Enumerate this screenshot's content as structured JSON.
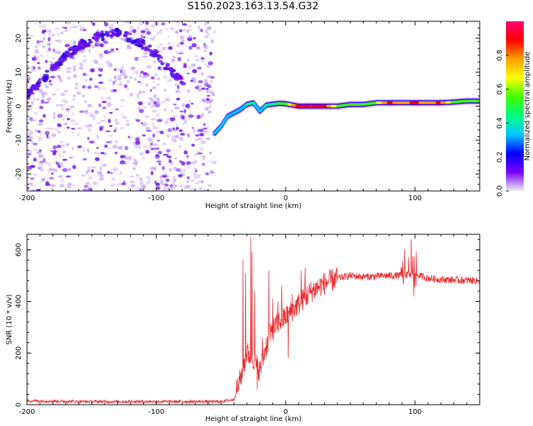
{
  "page_title": "S150.2023.163.13.54.G32",
  "chart_data": [
    {
      "type": "heatmap",
      "xlabel": "Height of straight line (km)",
      "ylabel": "Frequency (Hz)",
      "xlim": [
        -200,
        150
      ],
      "ylim": [
        -25,
        25
      ],
      "x_ticks": [
        "-200",
        "-100",
        "0",
        "100"
      ],
      "y_ticks": [
        "20",
        "10",
        "0",
        "-10",
        "-20"
      ],
      "colorbar": {
        "label": "Normalized spectral amplitude",
        "range": [
          0,
          1
        ],
        "ticks": [
          "0.0",
          "0.2",
          "0.4",
          "0.6",
          "0.8"
        ],
        "colors": [
          "#f0f0f0",
          "#7a00ff",
          "#0000ff",
          "#00c8ff",
          "#00ff80",
          "#40ff00",
          "#ffff00",
          "#ffa000",
          "#ff0000",
          "#ff0070"
        ]
      },
      "noise_region_x": [
        -200,
        -55
      ],
      "diffuse_speckle_color": "#b48cf0",
      "strong_speckle_color": "#7a20f0",
      "ridge_track": {
        "x": [
          -200,
          -195,
          -190,
          -185,
          -180,
          -175,
          -170,
          -165,
          -160,
          -155,
          -150,
          -145,
          -140,
          -135,
          -130,
          -125,
          -120,
          -115,
          -110,
          -105,
          -100,
          -95,
          -90,
          -85,
          -80
        ],
        "y": [
          3,
          5,
          7,
          9,
          11,
          13,
          15,
          16,
          17.5,
          18.5,
          19.5,
          20.5,
          21,
          21.5,
          21.5,
          21,
          20,
          19,
          18,
          16.5,
          15,
          13,
          11,
          9,
          7
        ]
      },
      "dominant_line": {
        "x": [
          -55,
          -50,
          -45,
          -40,
          -35,
          -30,
          -25,
          -20,
          -15,
          -10,
          -5,
          0,
          10,
          20,
          30,
          40,
          50,
          60,
          70,
          80,
          90,
          100,
          110,
          120,
          130,
          140,
          150
        ],
        "y": [
          -8,
          -6,
          -3,
          -2,
          -1,
          0.5,
          1,
          -1.5,
          0.3,
          0.6,
          0.8,
          0.7,
          0,
          0,
          0,
          0,
          0.5,
          0.5,
          1,
          1,
          1,
          1,
          1,
          1,
          1.2,
          1.5,
          1.5
        ],
        "amplitude": [
          0.3,
          0.35,
          0.35,
          0.3,
          0.35,
          0.4,
          0.4,
          0.35,
          0.4,
          0.45,
          0.5,
          0.55,
          0.9,
          0.95,
          0.9,
          0.6,
          0.55,
          0.55,
          0.6,
          0.85,
          0.8,
          0.85,
          0.8,
          0.85,
          0.55,
          0.55,
          0.5
        ]
      }
    },
    {
      "type": "line",
      "xlabel": "Height of straight line (km)",
      "ylabel": "SNR (10 * v/v)",
      "xlim": [
        -200,
        150
      ],
      "ylim": [
        0,
        660
      ],
      "x_ticks": [
        "-200",
        "-100",
        "0",
        "100"
      ],
      "y_ticks": [
        "0",
        "200",
        "400",
        "600"
      ],
      "color": "#e8262a",
      "trend": {
        "x": [
          -200,
          -150,
          -100,
          -50,
          -40,
          -35,
          -30,
          -25,
          -20,
          -15,
          -10,
          -5,
          0,
          10,
          20,
          30,
          40,
          50,
          60,
          80,
          90,
          100,
          110,
          120,
          150
        ],
        "y": [
          15,
          12,
          12,
          12,
          20,
          100,
          200,
          180,
          130,
          230,
          290,
          320,
          340,
          390,
          440,
          470,
          490,
          500,
          495,
          500,
          500,
          505,
          490,
          485,
          480
        ]
      },
      "spikes": [
        {
          "x": -33,
          "y": 560
        },
        {
          "x": -31,
          "y": 510
        },
        {
          "x": -27,
          "y": 650
        },
        {
          "x": -26,
          "y": 590
        },
        {
          "x": -24,
          "y": 440
        },
        {
          "x": -22,
          "y": 60
        },
        {
          "x": -18,
          "y": 260
        },
        {
          "x": -13,
          "y": 520
        },
        {
          "x": -10,
          "y": 410
        },
        {
          "x": -6,
          "y": 400
        },
        {
          "x": -3,
          "y": 460
        },
        {
          "x": 2,
          "y": 180
        },
        {
          "x": 5,
          "y": 430
        },
        {
          "x": 12,
          "y": 520
        },
        {
          "x": 15,
          "y": 530
        },
        {
          "x": 92,
          "y": 600
        },
        {
          "x": 95,
          "y": 350
        },
        {
          "x": 97,
          "y": 640
        },
        {
          "x": 99,
          "y": 420
        }
      ]
    }
  ]
}
